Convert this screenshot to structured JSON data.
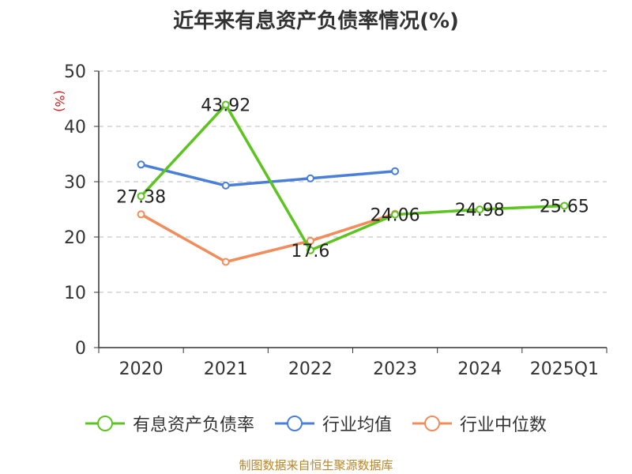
{
  "chart_data": {
    "type": "line",
    "title": "近年来有息资产负债率情况(%)",
    "ylabel": "(%)",
    "categories": [
      "2020",
      "2021",
      "2022",
      "2023",
      "2024",
      "2025Q1"
    ],
    "ylim": [
      0,
      50
    ],
    "yticks": [
      0,
      10,
      20,
      30,
      40,
      50
    ],
    "grid": true,
    "legend_position": "bottom",
    "series": [
      {
        "name": "有息资产负债率",
        "color": "#5cc41f",
        "values": [
          27.38,
          43.92,
          17.6,
          24.06,
          24.98,
          25.65
        ],
        "labels": [
          "27.38",
          "43.92",
          "17.6",
          "24.06",
          "24.98",
          "25.65"
        ]
      },
      {
        "name": "行业均值",
        "color": "#4a7fd9",
        "values": [
          33.1,
          29.3,
          30.6,
          31.9,
          null,
          null
        ]
      },
      {
        "name": "行业中位数",
        "color": "#f28c5a",
        "values": [
          24.1,
          15.5,
          19.3,
          24.2,
          null,
          null
        ]
      }
    ]
  },
  "source": "制图数据来自恒生聚源数据库"
}
